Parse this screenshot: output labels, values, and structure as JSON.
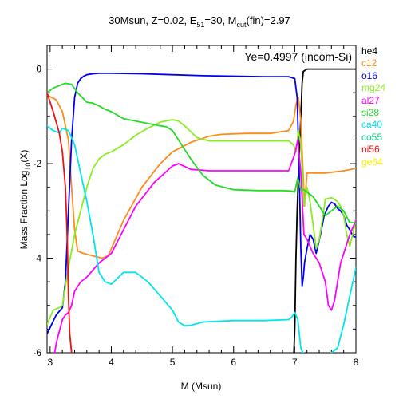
{
  "chart_data": {
    "type": "line",
    "title": {
      "prefix": "30Msun, Z=0.02, E",
      "e_sub": "51",
      "mid": "=30, M",
      "m_sub": "cut",
      "suffix": "(fin)=2.97"
    },
    "annotation": "Ye=0.4997 (incom-Si)",
    "xlabel": "M (Msun)",
    "ylabel": {
      "prefix": "Mass Fraction Log",
      "sub": "10",
      "suffix": "(X)"
    },
    "xlim": [
      2.95,
      8.0
    ],
    "ylim": [
      -6,
      0.5
    ],
    "xticks": [
      3,
      4,
      5,
      6,
      7,
      8
    ],
    "yticks": [
      0,
      -2,
      -4,
      -6
    ],
    "legend_position": "right",
    "series": [
      {
        "name": "he4",
        "color": "#000000",
        "x": [
          6.98,
          7.0,
          7.02,
          7.04,
          7.06,
          7.08,
          7.1,
          7.12,
          7.14,
          7.2,
          7.5,
          8.0
        ],
        "y": [
          -6.2,
          -5.5,
          -4.0,
          -3.0,
          -2.2,
          -1.6,
          -1.0,
          -0.3,
          -0.05,
          0.0,
          0.0,
          0.0
        ]
      },
      {
        "name": "c12",
        "color": "#ff8c1a",
        "x": [
          2.95,
          3.1,
          3.2,
          3.3,
          3.35,
          3.4,
          3.45,
          3.55,
          3.7,
          3.85,
          3.95,
          4.0,
          4.2,
          4.5,
          4.8,
          5.0,
          5.3,
          5.6,
          5.8,
          6.2,
          6.6,
          6.9,
          6.98,
          7.02,
          7.06,
          7.1,
          7.13,
          7.16,
          7.2,
          7.5,
          7.8,
          8.0
        ],
        "y": [
          -0.55,
          -0.65,
          -0.9,
          -1.5,
          -2.5,
          -3.4,
          -3.85,
          -3.9,
          -3.95,
          -4.0,
          -3.95,
          -3.8,
          -3.2,
          -2.5,
          -2.0,
          -1.75,
          -1.55,
          -1.42,
          -1.38,
          -1.36,
          -1.36,
          -1.3,
          -1.1,
          -0.75,
          -0.6,
          -1.1,
          -2.0,
          -2.9,
          -2.2,
          -2.2,
          -2.15,
          -2.1
        ]
      },
      {
        "name": "o16",
        "color": "#0000ee",
        "x": [
          2.95,
          3.1,
          3.2,
          3.25,
          3.3,
          3.35,
          3.4,
          3.45,
          3.5,
          3.55,
          3.6,
          3.7,
          3.8,
          4.0,
          4.5,
          5.0,
          5.5,
          6.0,
          6.5,
          6.9,
          7.0,
          7.04,
          7.07,
          7.1,
          7.12,
          7.14,
          7.16,
          7.2,
          7.25,
          7.3,
          7.35,
          7.42,
          7.48,
          7.55,
          7.6,
          7.65,
          7.7,
          7.75,
          7.8,
          7.85,
          7.9,
          7.94,
          7.97,
          8.0
        ],
        "y": [
          -5.6,
          -5.2,
          -5.05,
          -4.5,
          -3.0,
          -1.5,
          -0.6,
          -0.3,
          -0.2,
          -0.15,
          -0.12,
          -0.1,
          -0.09,
          -0.09,
          -0.1,
          -0.12,
          -0.14,
          -0.15,
          -0.16,
          -0.16,
          -0.2,
          -0.6,
          -2.0,
          -3.8,
          -4.6,
          -4.4,
          -4.1,
          -3.8,
          -3.5,
          -3.6,
          -3.9,
          -3.5,
          -3.1,
          -2.9,
          -2.82,
          -2.85,
          -2.95,
          -3.0,
          -3.1,
          -3.3,
          -3.4,
          -3.5,
          -3.55,
          -3.55
        ]
      },
      {
        "name": "mg24",
        "color": "#88ee22",
        "x": [
          2.95,
          3.05,
          3.15,
          3.2,
          3.3,
          3.4,
          3.5,
          3.6,
          3.7,
          3.8,
          3.9,
          4.0,
          4.2,
          4.4,
          4.6,
          4.8,
          5.0,
          5.1,
          5.2,
          5.4,
          5.6,
          6.0,
          6.5,
          6.9,
          6.98,
          7.02,
          7.06,
          7.1,
          7.15,
          7.2,
          7.25,
          7.3,
          7.35,
          7.4,
          7.45,
          7.5,
          7.6,
          7.7,
          7.75,
          7.8,
          7.85,
          7.9,
          8.0
        ],
        "y": [
          -5.4,
          -5.1,
          -5.05,
          -5.0,
          -4.2,
          -3.5,
          -3.0,
          -2.5,
          -2.1,
          -1.9,
          -1.8,
          -1.75,
          -1.6,
          -1.4,
          -1.25,
          -1.12,
          -1.07,
          -1.1,
          -1.2,
          -1.45,
          -1.52,
          -1.52,
          -1.52,
          -1.52,
          -1.6,
          -1.75,
          -1.3,
          -1.6,
          -2.9,
          -2.5,
          -2.8,
          -3.3,
          -3.8,
          -3.6,
          -3.2,
          -2.75,
          -2.72,
          -2.8,
          -2.9,
          -3.1,
          -3.5,
          -3.75,
          -3.2
        ]
      },
      {
        "name": "al27",
        "color": "#ff00ff",
        "x": [
          3.05,
          3.1,
          3.2,
          3.25,
          3.3,
          3.35,
          3.4,
          3.5,
          3.6,
          3.8,
          4.0,
          4.2,
          4.4,
          4.7,
          5.0,
          5.1,
          5.3,
          5.6,
          6.0,
          6.5,
          6.9,
          7.0,
          7.05,
          7.1,
          7.15,
          7.2,
          7.3,
          7.4,
          7.5,
          7.55,
          7.6,
          7.65,
          7.7,
          7.75,
          7.8,
          7.9,
          8.0
        ],
        "y": [
          -6.2,
          -5.8,
          -5.3,
          -5.2,
          -5.15,
          -5.0,
          -4.7,
          -4.5,
          -4.4,
          -4.1,
          -3.9,
          -3.4,
          -2.9,
          -2.4,
          -2.05,
          -2.0,
          -2.12,
          -2.15,
          -2.15,
          -2.15,
          -2.15,
          -1.8,
          -1.5,
          -2.2,
          -3.5,
          -3.6,
          -3.9,
          -4.1,
          -4.5,
          -5.0,
          -5.1,
          -4.9,
          -4.5,
          -4.1,
          -3.9,
          -3.5,
          -3.2
        ]
      },
      {
        "name": "si28",
        "color": "#22dd22",
        "x": [
          2.95,
          3.05,
          3.15,
          3.25,
          3.35,
          3.45,
          3.6,
          3.7,
          3.8,
          3.9,
          4.0,
          4.2,
          4.4,
          4.6,
          4.8,
          4.9,
          5.0,
          5.1,
          5.3,
          5.5,
          5.7,
          6.0,
          6.4,
          6.8,
          6.95,
          7.0,
          7.05,
          7.1,
          7.15,
          7.2,
          7.3,
          7.4,
          7.5,
          7.6,
          7.7,
          7.8,
          7.9,
          8.0
        ],
        "y": [
          -0.5,
          -0.4,
          -0.35,
          -0.3,
          -0.32,
          -0.5,
          -0.7,
          -0.72,
          -0.78,
          -0.85,
          -0.9,
          -1.05,
          -1.1,
          -1.15,
          -1.2,
          -1.22,
          -1.3,
          -1.5,
          -1.9,
          -2.25,
          -2.45,
          -2.55,
          -2.57,
          -2.57,
          -2.58,
          -2.6,
          -2.3,
          -2.55,
          -2.55,
          -2.6,
          -2.7,
          -2.9,
          -3.1,
          -3.0,
          -2.9,
          -3.0,
          -3.25,
          -3.25
        ]
      },
      {
        "name": "ca40",
        "color": "#00e5ee",
        "x": [
          2.95,
          3.05,
          3.15,
          3.2,
          3.3,
          3.4,
          3.5,
          3.6,
          3.7,
          3.8,
          3.9,
          4.0,
          4.2,
          4.4,
          4.6,
          4.8,
          5.0,
          5.1,
          5.2,
          5.3,
          5.5,
          6.0,
          6.5,
          6.9,
          6.95,
          7.0,
          7.05,
          7.1,
          7.2,
          7.3,
          7.4,
          7.5,
          7.6,
          7.7,
          7.8,
          7.9,
          8.0
        ],
        "y": [
          -1.2,
          -1.3,
          -1.35,
          -1.25,
          -1.3,
          -1.6,
          -2.2,
          -2.8,
          -3.5,
          -4.3,
          -4.5,
          -4.55,
          -4.3,
          -4.3,
          -4.5,
          -4.8,
          -5.1,
          -5.35,
          -5.43,
          -5.42,
          -5.35,
          -5.32,
          -5.32,
          -5.3,
          -5.25,
          -5.15,
          -5.3,
          -5.9,
          -6.2,
          -6.3,
          -6.2,
          -6.1,
          -6.0,
          -5.9,
          -5.4,
          -4.8,
          -4.2
        ]
      },
      {
        "name": "ni56",
        "color": "#ee1111",
        "x": [
          2.95,
          3.05,
          3.15,
          3.2,
          3.25,
          3.28,
          3.3,
          3.32,
          3.35,
          3.38
        ],
        "y": [
          -0.5,
          -0.9,
          -1.35,
          -1.75,
          -2.5,
          -3.6,
          -4.8,
          -5.6,
          -6.0,
          -6.3
        ]
      },
      {
        "name": "co55",
        "color": "#00dd88",
        "x": [],
        "y": []
      },
      {
        "name": "ge64",
        "color": "#ffee00",
        "x": [],
        "y": []
      }
    ]
  }
}
